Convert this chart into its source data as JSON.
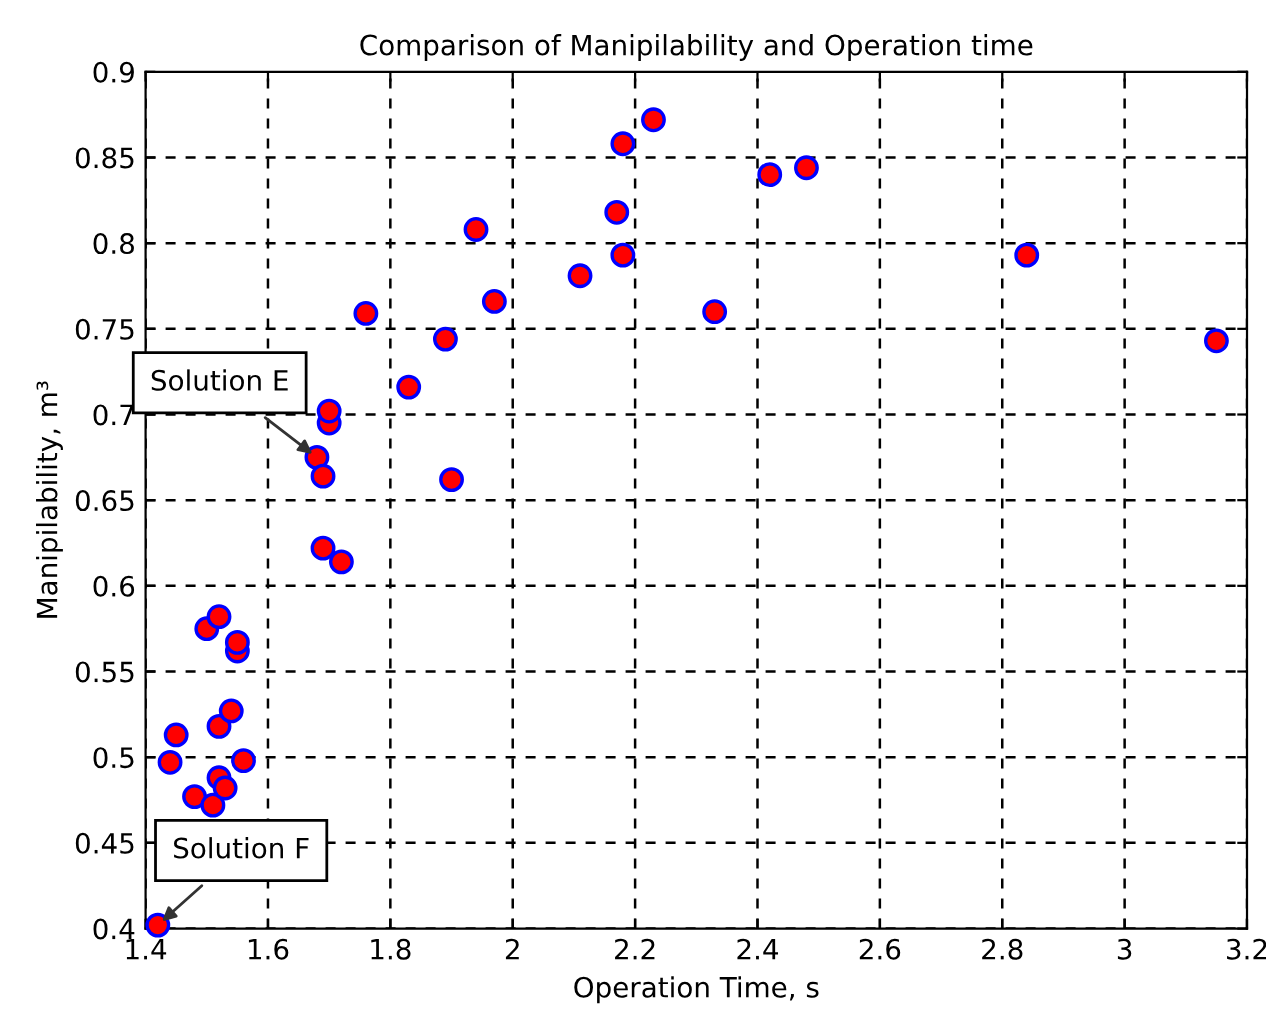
{
  "chart_data": {
    "type": "scatter",
    "title": "Comparison of Manipilability and Operation time",
    "xlabel": "Operation Time, s",
    "ylabel": "Manipilability, m³",
    "x": [
      1.42,
      1.44,
      1.45,
      1.48,
      1.5,
      1.51,
      1.52,
      1.52,
      1.52,
      1.53,
      1.54,
      1.55,
      1.55,
      1.56,
      1.68,
      1.69,
      1.69,
      1.7,
      1.7,
      1.72,
      1.76,
      1.83,
      1.89,
      1.9,
      1.94,
      1.97,
      2.11,
      2.17,
      2.18,
      2.18,
      2.23,
      2.33,
      2.42,
      2.48,
      2.84,
      3.15
    ],
    "series": [
      {
        "color": "#ff0000",
        "values": [
          0.402,
          0.497,
          0.513,
          0.477,
          0.575,
          0.472,
          0.582,
          0.518,
          0.488,
          0.482,
          0.527,
          0.562,
          0.567,
          0.498,
          0.675,
          0.622,
          0.664,
          0.695,
          0.702,
          0.614,
          0.759,
          0.716,
          0.744,
          0.662,
          0.808,
          0.766,
          0.781,
          0.818,
          0.858,
          0.793,
          0.872,
          0.76,
          0.84,
          0.844,
          0.793,
          0.743
        ]
      }
    ],
    "annotations": [
      {
        "text": "Solution E",
        "x": 1.68,
        "y": 0.675
      },
      {
        "text": "Solution F",
        "x": 1.42,
        "y": 0.402
      }
    ],
    "xlim": [
      1.4,
      3.2
    ],
    "xticks": [
      1.4,
      1.6,
      1.8,
      2,
      2.2,
      2.4,
      2.6,
      2.8,
      3,
      3.2
    ],
    "ylim": [
      0.4,
      0.9
    ],
    "yticks": [
      0.4,
      0.45,
      0.5,
      0.55,
      0.6,
      0.65,
      0.7,
      0.75,
      0.8,
      0.85,
      0.9
    ],
    "grid": true,
    "marker": "circle",
    "legend": false
  }
}
